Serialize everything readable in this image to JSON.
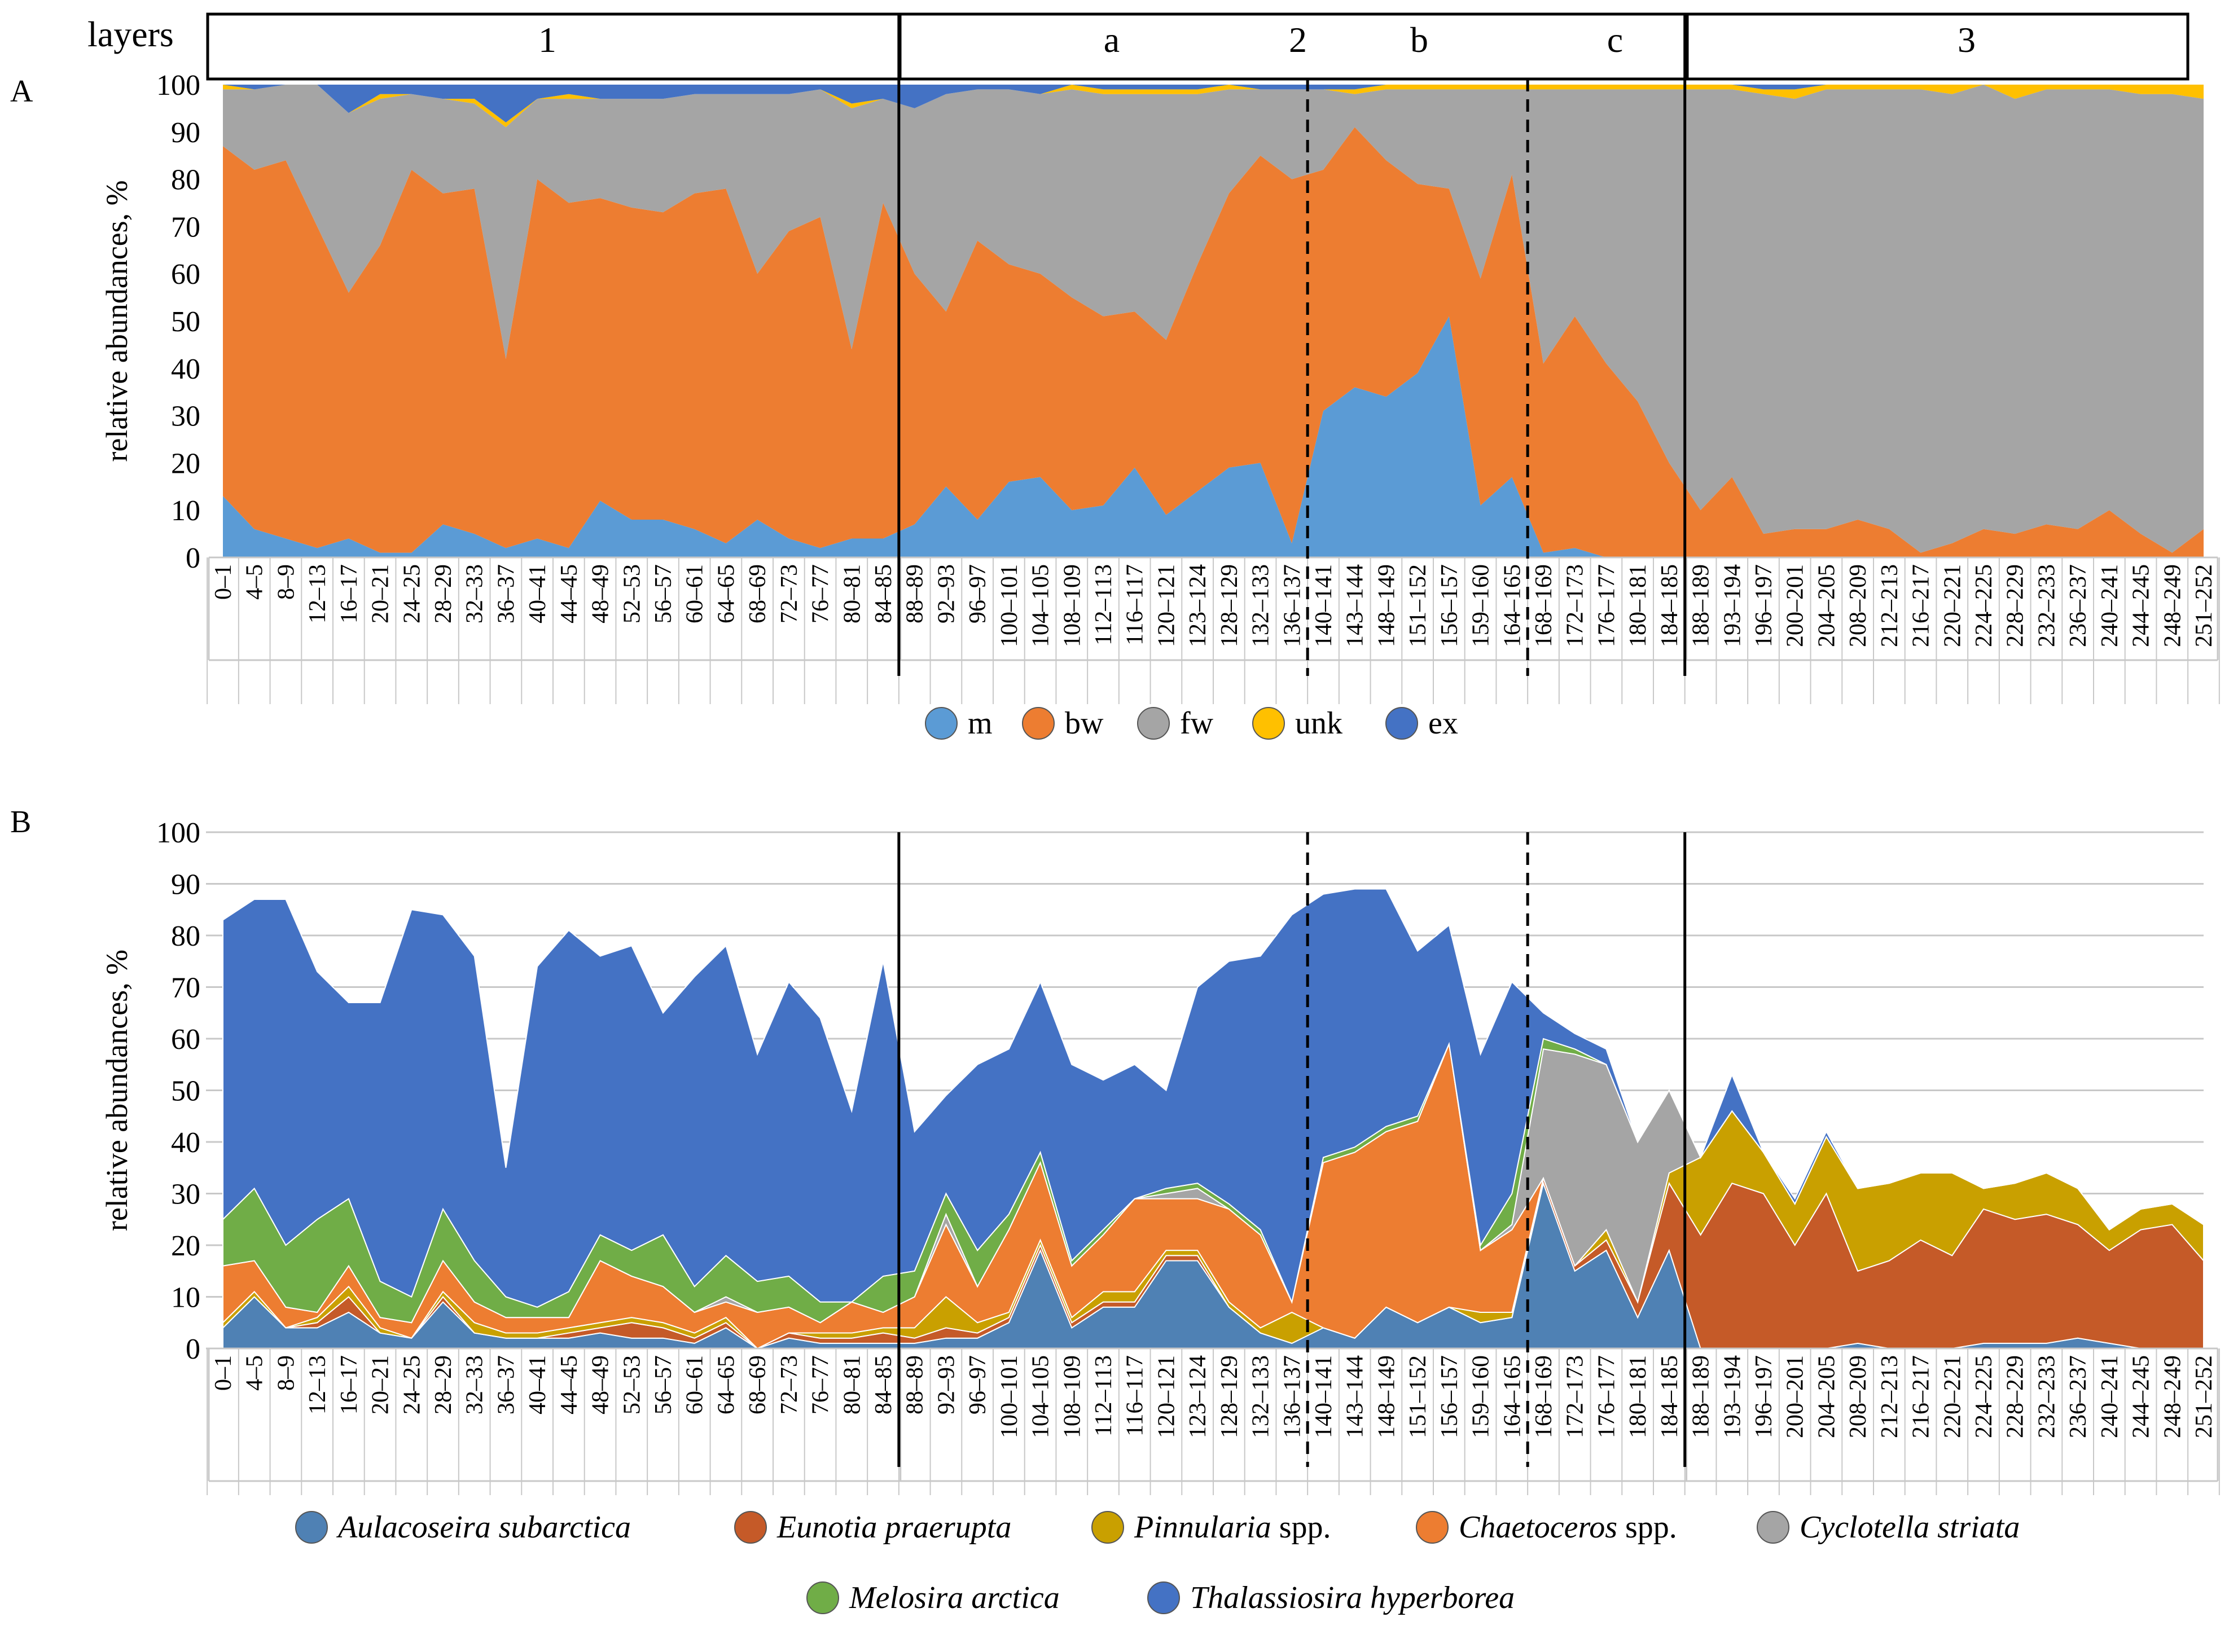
{
  "layers_label": "layers",
  "panel_a_label": "A",
  "panel_b_label": "B",
  "layer_labels": [
    {
      "key": "1",
      "label": "1"
    },
    {
      "key": "a",
      "label": "a"
    },
    {
      "key": "2",
      "label": "2"
    },
    {
      "key": "b",
      "label": "b"
    },
    {
      "key": "c",
      "label": "c"
    },
    {
      "key": "3",
      "label": "3"
    }
  ],
  "chart_data": [
    {
      "id": "A",
      "type": "area",
      "stacked": true,
      "title": "",
      "ylabel": "relative abundances, %",
      "xlabel": "",
      "ylim": [
        0,
        100
      ],
      "yticks": [
        0,
        10,
        20,
        30,
        40,
        50,
        60,
        70,
        80,
        90,
        100
      ],
      "grid": false,
      "legend_position": "bottom",
      "categories": [
        "0–1",
        "4–5",
        "8–9",
        "12–13",
        "16–17",
        "20–21",
        "24–25",
        "28–29",
        "32–33",
        "36–37",
        "40–41",
        "44–45",
        "48–49",
        "52–53",
        "56–57",
        "60–61",
        "64–65",
        "68–69",
        "72–73",
        "76–77",
        "80–81",
        "84–85",
        "88–89",
        "92–93",
        "96–97",
        "100–101",
        "104–105",
        "108–109",
        "112–113",
        "116–117",
        "120–121",
        "123–124",
        "128–129",
        "132–133",
        "136–137",
        "140–141",
        "143–144",
        "148–149",
        "151–152",
        "156–157",
        "159–160",
        "164–165",
        "168–169",
        "172–173",
        "176–177",
        "180–181",
        "184–185",
        "188–189",
        "193–194",
        "196–197",
        "200–201",
        "204–205",
        "208–209",
        "212–213",
        "216–217",
        "220–221",
        "224–225",
        "228–229",
        "232–233",
        "236–237",
        "240–241",
        "244–245",
        "248–249",
        "251–252"
      ],
      "series": [
        {
          "name": "m",
          "color": "#5b9bd5",
          "values": [
            13,
            6,
            4,
            2,
            4,
            1,
            1,
            7,
            5,
            2,
            4,
            2,
            12,
            8,
            8,
            6,
            3,
            8,
            4,
            2,
            4,
            4,
            7,
            15,
            8,
            16,
            17,
            10,
            11,
            19,
            9,
            14,
            19,
            20,
            3,
            31,
            36,
            34,
            39,
            51,
            11,
            17,
            1,
            2,
            0,
            0,
            0,
            0,
            0,
            0,
            0,
            0,
            0,
            0,
            0,
            0,
            0,
            0,
            0,
            0,
            0,
            0,
            0,
            0
          ]
        },
        {
          "name": "bw",
          "color": "#ed7d31",
          "values": [
            74,
            76,
            80,
            68,
            52,
            65,
            81,
            70,
            73,
            40,
            76,
            73,
            64,
            66,
            65,
            71,
            75,
            52,
            65,
            70,
            40,
            71,
            53,
            37,
            59,
            46,
            43,
            45,
            40,
            33,
            37,
            48,
            58,
            65,
            77,
            51,
            55,
            50,
            40,
            27,
            48,
            64,
            40,
            49,
            41,
            33,
            20,
            10,
            17,
            5,
            6,
            6,
            8,
            6,
            1,
            3,
            6,
            5,
            7,
            6,
            10,
            5,
            1,
            6
          ]
        },
        {
          "name": "fw",
          "color": "#a5a5a5",
          "values": [
            12,
            17,
            16,
            30,
            38,
            31,
            16,
            20,
            18,
            49,
            17,
            22,
            21,
            23,
            24,
            21,
            20,
            38,
            29,
            27,
            51,
            22,
            35,
            46,
            32,
            37,
            38,
            44,
            47,
            46,
            52,
            36,
            22,
            14,
            19,
            17,
            7,
            15,
            20,
            21,
            40,
            18,
            58,
            48,
            58,
            66,
            79,
            89,
            82,
            93,
            91,
            93,
            91,
            93,
            98,
            95,
            94,
            92,
            92,
            93,
            89,
            93,
            97,
            91
          ]
        },
        {
          "name": "unk",
          "color": "#ffc000",
          "values": [
            1,
            0,
            0,
            0,
            0,
            1,
            0,
            0,
            1,
            1,
            0,
            1,
            0,
            0,
            0,
            0,
            0,
            0,
            0,
            0,
            1,
            0,
            0,
            0,
            0,
            0,
            0,
            1,
            1,
            1,
            1,
            1,
            1,
            0,
            0,
            0,
            1,
            1,
            1,
            1,
            1,
            1,
            1,
            1,
            1,
            1,
            1,
            1,
            1,
            1,
            2,
            1,
            1,
            1,
            1,
            2,
            0,
            3,
            1,
            1,
            1,
            2,
            2,
            3
          ]
        },
        {
          "name": "ex",
          "color": "#4472c4",
          "values": [
            0,
            1,
            0,
            0,
            6,
            2,
            2,
            3,
            3,
            8,
            3,
            2,
            3,
            3,
            3,
            2,
            2,
            2,
            2,
            1,
            4,
            3,
            5,
            2,
            1,
            1,
            2,
            0,
            1,
            1,
            1,
            1,
            0,
            1,
            1,
            1,
            1,
            0,
            0,
            0,
            0,
            0,
            0,
            0,
            0,
            0,
            0,
            0,
            0,
            1,
            1,
            0,
            0,
            0,
            0,
            0,
            0,
            0,
            0,
            0,
            0,
            0,
            0,
            0
          ]
        }
      ]
    },
    {
      "id": "B",
      "type": "area",
      "stacked": true,
      "title": "",
      "ylabel": "relative abundances, %",
      "xlabel": "",
      "ylim": [
        0,
        100
      ],
      "yticks": [
        0,
        10,
        20,
        30,
        40,
        50,
        60,
        70,
        80,
        90,
        100
      ],
      "grid": true,
      "legend_position": "bottom",
      "categories": [
        "0–1",
        "4–5",
        "8–9",
        "12–13",
        "16–17",
        "20–21",
        "24–25",
        "28–29",
        "32–33",
        "36–37",
        "40–41",
        "44–45",
        "48–49",
        "52–53",
        "56–57",
        "60–61",
        "64–65",
        "68–69",
        "72–73",
        "76–77",
        "80–81",
        "84–85",
        "88–89",
        "92–93",
        "96–97",
        "100–101",
        "104–105",
        "108–109",
        "112–113",
        "116–117",
        "120–121",
        "123–124",
        "128–129",
        "132–133",
        "136–137",
        "140–141",
        "143–144",
        "148–149",
        "151–152",
        "156–157",
        "159–160",
        "164–165",
        "168–169",
        "172–173",
        "176–177",
        "180–181",
        "184–185",
        "188–189",
        "193–194",
        "196–197",
        "200–201",
        "204–205",
        "208–209",
        "212–213",
        "216–217",
        "220–221",
        "224–225",
        "228–229",
        "232–233",
        "236–237",
        "240–241",
        "244–245",
        "248–249",
        "251–252"
      ],
      "series": [
        {
          "name": "Aulacoseira subarctica",
          "color": "#4f81b4",
          "values": [
            4,
            10,
            4,
            4,
            7,
            3,
            2,
            9,
            3,
            2,
            2,
            2,
            3,
            2,
            2,
            1,
            4,
            0,
            2,
            1,
            1,
            1,
            1,
            2,
            2,
            5,
            19,
            4,
            8,
            8,
            17,
            17,
            8,
            3,
            1,
            4,
            2,
            8,
            5,
            8,
            5,
            6,
            32,
            15,
            19,
            6,
            19,
            0,
            0,
            0,
            0,
            0,
            1,
            0,
            0,
            0,
            1,
            1,
            1,
            2,
            1,
            0,
            0,
            0
          ]
        },
        {
          "name": "Eunotia praerupta",
          "color": "#c55a28",
          "values": [
            0,
            0,
            0,
            1,
            3,
            0,
            0,
            1,
            0,
            0,
            0,
            1,
            1,
            3,
            2,
            1,
            1,
            0,
            1,
            1,
            1,
            2,
            1,
            2,
            1,
            1,
            1,
            1,
            1,
            1,
            1,
            1,
            0,
            0,
            0,
            0,
            0,
            0,
            0,
            0,
            0,
            0,
            1,
            1,
            2,
            3,
            13,
            22,
            32,
            30,
            20,
            30,
            14,
            17,
            21,
            18,
            26,
            24,
            25,
            22,
            18,
            23,
            24,
            17
          ]
        },
        {
          "name": "Pinnularia spp.",
          "color": "#c9a000",
          "values": [
            1,
            1,
            0,
            1,
            2,
            1,
            0,
            1,
            2,
            1,
            1,
            1,
            1,
            1,
            1,
            1,
            1,
            0,
            0,
            1,
            1,
            1,
            2,
            6,
            2,
            1,
            1,
            1,
            2,
            2,
            1,
            1,
            1,
            1,
            6,
            0,
            0,
            0,
            0,
            0,
            2,
            1,
            0,
            0,
            2,
            0,
            2,
            15,
            14,
            8,
            8,
            11,
            16,
            15,
            13,
            16,
            4,
            7,
            8,
            7,
            4,
            4,
            4,
            7
          ]
        },
        {
          "name": "Chaetoceros spp.",
          "color": "#ed7d31",
          "values": [
            11,
            6,
            4,
            1,
            4,
            2,
            3,
            6,
            4,
            3,
            3,
            2,
            12,
            8,
            7,
            4,
            3,
            7,
            5,
            2,
            6,
            3,
            6,
            14,
            7,
            16,
            15,
            10,
            11,
            18,
            10,
            10,
            18,
            18,
            2,
            32,
            36,
            34,
            39,
            51,
            12,
            16,
            0,
            0,
            0,
            0,
            0,
            0,
            0,
            0,
            0,
            0,
            0,
            0,
            0,
            0,
            0,
            0,
            0,
            0,
            0,
            0,
            0,
            0
          ]
        },
        {
          "name": "Cyclotella striata",
          "color": "#a5a5a5",
          "values": [
            0,
            0,
            0,
            0,
            0,
            0,
            0,
            0,
            0,
            0,
            0,
            0,
            0,
            0,
            0,
            0,
            1,
            0,
            0,
            0,
            0,
            0,
            0,
            2,
            0,
            0,
            0,
            0,
            0,
            0,
            1,
            2,
            0,
            0,
            0,
            0,
            0,
            0,
            0,
            0,
            0,
            1,
            25,
            41,
            32,
            31,
            16,
            0,
            0,
            0,
            0,
            0,
            0,
            0,
            0,
            0,
            0,
            0,
            0,
            0,
            0,
            0,
            0,
            0
          ]
        },
        {
          "name": "Melosira arctica",
          "color": "#70ad47",
          "values": [
            9,
            14,
            12,
            18,
            13,
            7,
            5,
            10,
            8,
            4,
            2,
            5,
            5,
            5,
            10,
            5,
            8,
            6,
            6,
            4,
            0,
            7,
            5,
            4,
            7,
            3,
            2,
            1,
            1,
            0,
            1,
            1,
            1,
            1,
            0,
            1,
            1,
            1,
            1,
            0,
            1,
            6,
            2,
            1,
            0,
            0,
            0,
            0,
            0,
            0,
            0,
            0,
            0,
            0,
            0,
            0,
            0,
            0,
            0,
            0,
            0,
            0,
            0,
            0
          ]
        },
        {
          "name": "Thalassiosira hyperborea",
          "color": "#4472c4",
          "values": [
            58,
            56,
            67,
            48,
            38,
            54,
            75,
            57,
            59,
            25,
            66,
            70,
            54,
            59,
            43,
            60,
            60,
            44,
            57,
            55,
            37,
            61,
            27,
            19,
            36,
            32,
            33,
            38,
            29,
            26,
            19,
            38,
            47,
            53,
            75,
            51,
            50,
            46,
            32,
            23,
            37,
            41,
            5,
            3,
            3,
            0,
            0,
            0,
            7,
            0,
            1,
            1,
            0,
            0,
            0,
            0,
            0,
            0,
            0,
            0,
            0,
            0,
            0,
            0
          ]
        }
      ]
    }
  ]
}
